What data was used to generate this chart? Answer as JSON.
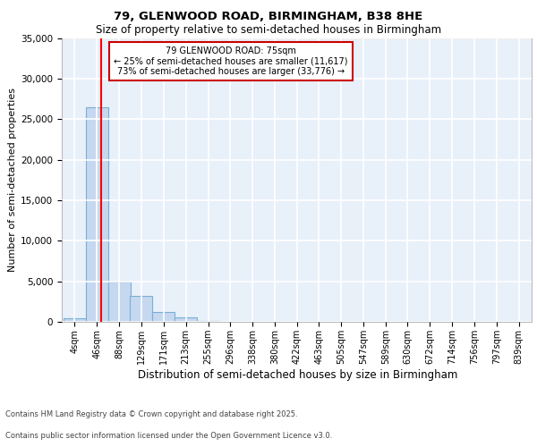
{
  "title": "79, GLENWOOD ROAD, BIRMINGHAM, B38 8HE",
  "subtitle": "Size of property relative to semi-detached houses in Birmingham",
  "xlabel": "Distribution of semi-detached houses by size in Birmingham",
  "ylabel": "Number of semi-detached properties",
  "annotation_line1": "79 GLENWOOD ROAD: 75sqm",
  "annotation_line2": "← 25% of semi-detached houses are smaller (11,617)",
  "annotation_line3": "73% of semi-detached houses are larger (33,776) →",
  "footer_line1": "Contains HM Land Registry data © Crown copyright and database right 2025.",
  "footer_line2": "Contains public sector information licensed under the Open Government Licence v3.0.",
  "bin_labels": [
    "4sqm",
    "46sqm",
    "88sqm",
    "129sqm",
    "171sqm",
    "213sqm",
    "255sqm",
    "296sqm",
    "338sqm",
    "380sqm",
    "422sqm",
    "463sqm",
    "505sqm",
    "547sqm",
    "589sqm",
    "630sqm",
    "672sqm",
    "714sqm",
    "756sqm",
    "797sqm",
    "839sqm"
  ],
  "bin_edges": [
    4,
    46,
    88,
    129,
    171,
    213,
    255,
    296,
    338,
    380,
    422,
    463,
    505,
    547,
    589,
    630,
    672,
    714,
    756,
    797,
    839
  ],
  "bar_heights": [
    400,
    26500,
    5000,
    3200,
    1200,
    500,
    100,
    50,
    10,
    5,
    2,
    1,
    0,
    0,
    0,
    0,
    0,
    0,
    0,
    0
  ],
  "bar_color": "#c5d8f0",
  "bar_edge_color": "#7aafd4",
  "background_color": "#e8f0fa",
  "grid_color": "#ffffff",
  "red_line_x": 75,
  "annotation_box_color": "#ffffff",
  "annotation_box_edge": "#cc0000",
  "ylim": [
    0,
    35000
  ],
  "yticks": [
    0,
    5000,
    10000,
    15000,
    20000,
    25000,
    30000,
    35000
  ]
}
